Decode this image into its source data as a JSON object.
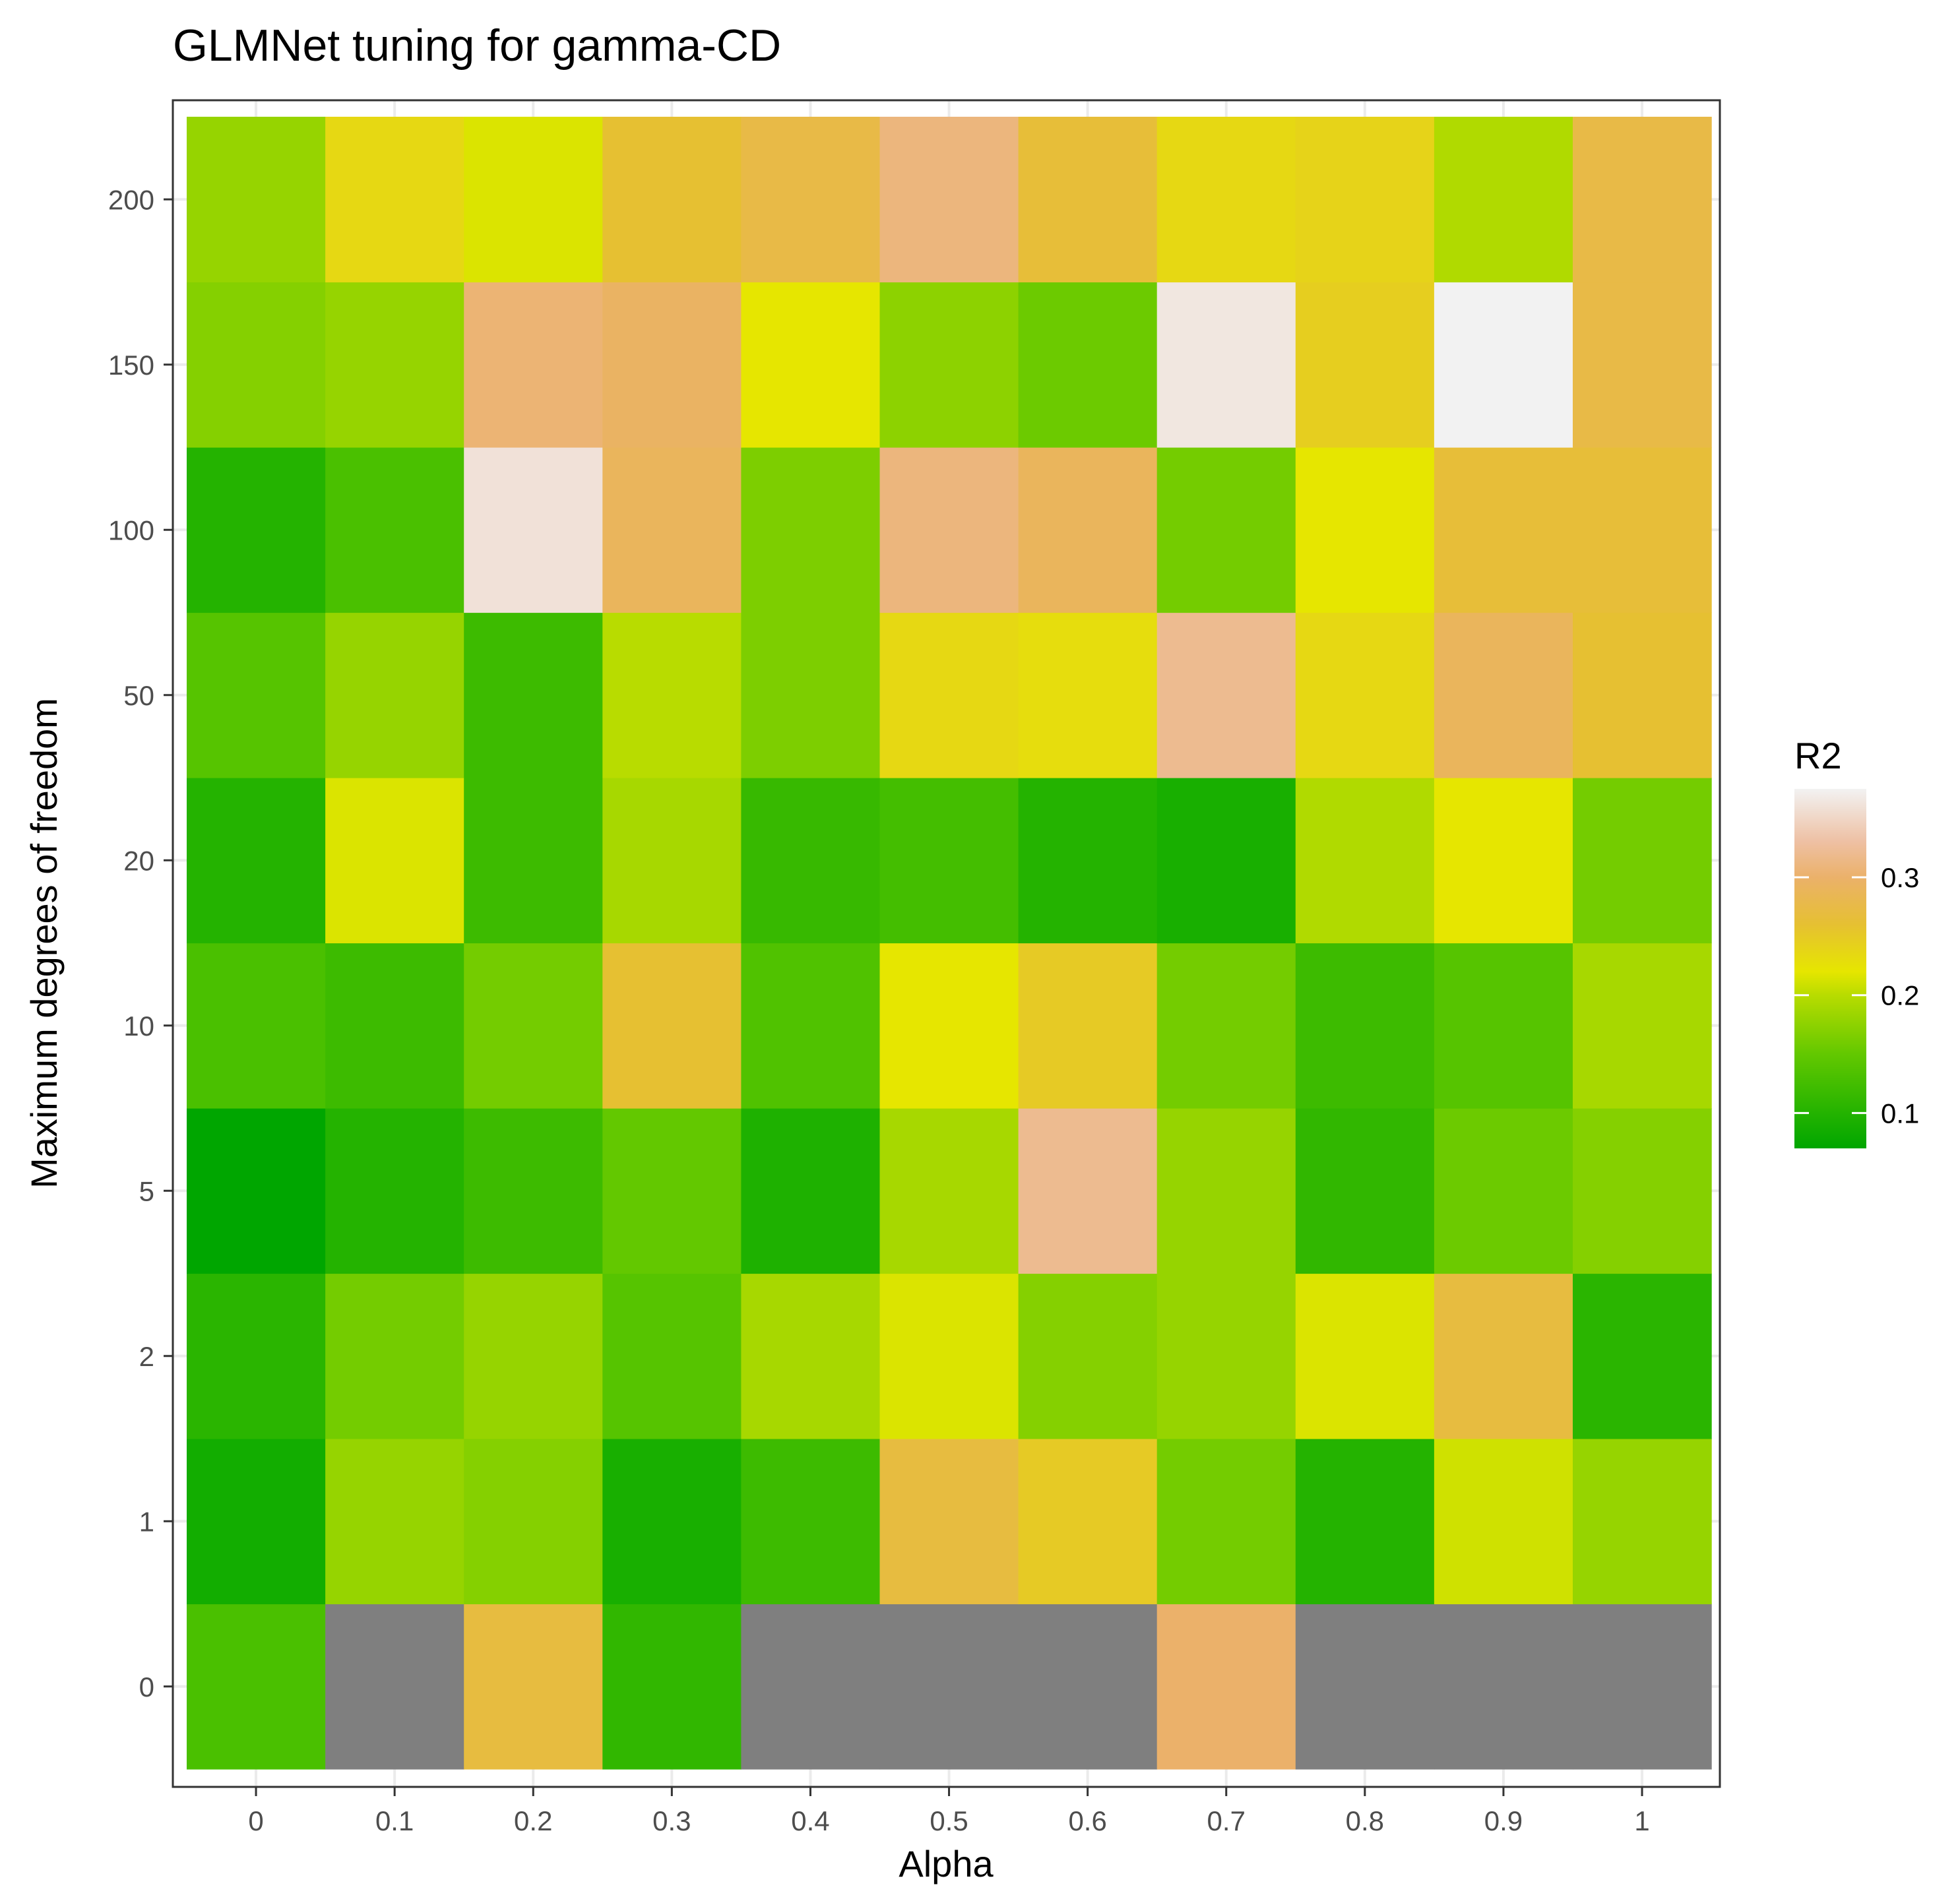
{
  "chart_data": {
    "type": "heatmap",
    "title": "GLMNet tuning for gamma-CD",
    "xlabel": "Alpha",
    "ylabel": "Maximum degrees of freedom",
    "x_categories": [
      "0",
      "0.1",
      "0.2",
      "0.3",
      "0.4",
      "0.5",
      "0.6",
      "0.7",
      "0.8",
      "0.9",
      "1"
    ],
    "y_categories": [
      "0",
      "1",
      "2",
      "5",
      "10",
      "20",
      "50",
      "100",
      "150",
      "200"
    ],
    "values": [
      [
        0.13,
        null,
        0.27,
        0.11,
        null,
        null,
        null,
        0.3,
        null,
        null,
        null
      ],
      [
        0.085,
        0.18,
        0.17,
        0.09,
        0.12,
        0.27,
        0.25,
        0.16,
        0.1,
        0.21,
        0.18
      ],
      [
        0.105,
        0.16,
        0.18,
        0.14,
        0.19,
        0.215,
        0.17,
        0.18,
        0.215,
        0.27,
        0.105
      ],
      [
        0.07,
        0.1,
        0.12,
        0.15,
        0.095,
        0.19,
        0.32,
        0.18,
        0.11,
        0.155,
        0.17
      ],
      [
        0.13,
        0.12,
        0.16,
        0.26,
        0.135,
        0.22,
        0.25,
        0.16,
        0.12,
        0.14,
        0.19
      ],
      [
        0.1,
        0.215,
        0.12,
        0.19,
        0.115,
        0.125,
        0.1,
        0.09,
        0.195,
        0.22,
        0.16
      ],
      [
        0.14,
        0.18,
        0.12,
        0.2,
        0.165,
        0.235,
        0.23,
        0.32,
        0.235,
        0.29,
        0.26
      ],
      [
        0.1,
        0.13,
        0.36,
        0.29,
        0.165,
        0.31,
        0.29,
        0.16,
        0.22,
        0.265,
        0.265
      ],
      [
        0.17,
        0.18,
        0.305,
        0.295,
        0.22,
        0.175,
        0.155,
        0.365,
        0.245,
        0.375,
        0.275
      ],
      [
        0.18,
        0.235,
        0.215,
        0.26,
        0.275,
        0.31,
        0.265,
        0.235,
        0.24,
        0.195,
        0.275
      ]
    ],
    "na_color": "#7f7f7f",
    "color_scale": {
      "domain": [
        0.07,
        0.1,
        0.15,
        0.2,
        0.22,
        0.26,
        0.3,
        0.33,
        0.375
      ],
      "colors": [
        "#00a600",
        "#24b300",
        "#63c800",
        "#b8dc00",
        "#e6e600",
        "#e6c032",
        "#ebb16a",
        "#eec0a3",
        "#f2f2f2"
      ]
    },
    "legend": {
      "title": "R2",
      "ticks": [
        0.1,
        0.2,
        0.3
      ],
      "tick_labels": [
        "0.1",
        "0.2",
        "0.3"
      ],
      "range": [
        0.07,
        0.375
      ],
      "position": "right"
    },
    "grid": true
  }
}
